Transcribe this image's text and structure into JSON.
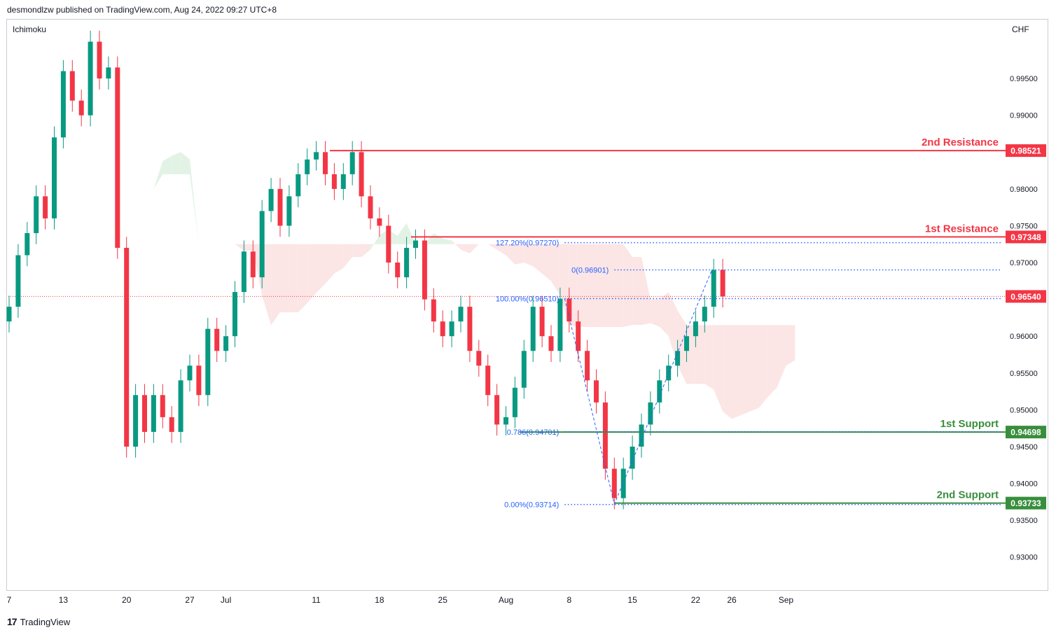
{
  "header": {
    "published_text": "desmondlzw published on TradingView.com, Aug 24, 2022 09:27 UTC+8"
  },
  "indicator": {
    "name": "Ichimoku"
  },
  "currency": "CHF",
  "footer": {
    "brand": "TradingView",
    "icon": "tradingview-logo-icon"
  },
  "chart_data": {
    "type": "candlestick",
    "symbol_quote_currency": "CHF",
    "y_range": [
      0.9255,
      1.003
    ],
    "y_ticks": [
      {
        "value": 0.995,
        "label": "0.99500"
      },
      {
        "value": 0.99,
        "label": "0.99000"
      },
      {
        "value": 0.98,
        "label": "0.98000"
      },
      {
        "value": 0.975,
        "label": "0.97500"
      },
      {
        "value": 0.97,
        "label": "0.97000"
      },
      {
        "value": 0.96,
        "label": "0.96000"
      },
      {
        "value": 0.955,
        "label": "0.95500"
      },
      {
        "value": 0.95,
        "label": "0.95000"
      },
      {
        "value": 0.945,
        "label": "0.94500"
      },
      {
        "value": 0.94,
        "label": "0.94000"
      },
      {
        "value": 0.935,
        "label": "0.93500"
      },
      {
        "value": 0.93,
        "label": "0.93000"
      }
    ],
    "x_range": [
      0,
      137
    ],
    "x_ticks": [
      {
        "day": 0,
        "label": "7"
      },
      {
        "day": 6,
        "label": "13"
      },
      {
        "day": 13,
        "label": "20"
      },
      {
        "day": 20,
        "label": "27"
      },
      {
        "day": 24,
        "label": "Jul"
      },
      {
        "day": 34,
        "label": "11"
      },
      {
        "day": 41,
        "label": "18"
      },
      {
        "day": 48,
        "label": "25"
      },
      {
        "day": 55,
        "label": "Aug"
      },
      {
        "day": 62,
        "label": "8"
      },
      {
        "day": 69,
        "label": "15"
      },
      {
        "day": 76,
        "label": "22"
      },
      {
        "day": 80,
        "label": "26"
      },
      {
        "day": 86,
        "label": "Sep"
      }
    ],
    "current_price": {
      "value": 0.9654,
      "label": "0.96540"
    },
    "levels": [
      {
        "name": "2nd Resistance",
        "value": 0.98521,
        "label": "0.98521",
        "kind": "resistance",
        "x_start": 35.5,
        "color": "#f23645"
      },
      {
        "name": "1st Resistance",
        "value": 0.97348,
        "label": "0.97348",
        "kind": "resistance",
        "x_start": 44.5,
        "color": "#f23645"
      },
      {
        "name": "1st Support",
        "value": 0.94698,
        "label": "0.94698",
        "kind": "support",
        "x_start": 56.5,
        "color": "#388e3c"
      },
      {
        "name": "2nd Support",
        "value": 0.93733,
        "label": "0.93733",
        "kind": "support",
        "x_start": 67,
        "color": "#388e3c"
      }
    ],
    "fib_levels": [
      {
        "label": "127.20%(0.97270)",
        "value": 0.9727,
        "x_start": 61.5
      },
      {
        "label": "0(0.96901)",
        "value": 0.96901,
        "x_start": 67
      },
      {
        "label": "100.00%(0.96510)",
        "value": 0.9651,
        "x_start": 61.5
      },
      {
        "label": "0.786(0.94701)",
        "value": 0.94701,
        "x_start": 61.5
      },
      {
        "label": "0.00%(0.93714)",
        "value": 0.93714,
        "x_start": 61.5
      }
    ],
    "zigzag": [
      [
        61.5,
        0.9651
      ],
      [
        67,
        0.9372
      ],
      [
        77.8,
        0.969
      ]
    ],
    "colors": {
      "up": "#089981",
      "down": "#f23645",
      "cloud_bull": "#d8efdc",
      "cloud_bear": "#fbdcdc",
      "fib": "#2962ff"
    },
    "closes": [
      0.964,
      0.971,
      0.974,
      0.979,
      0.976,
      0.987,
      0.996,
      0.992,
      0.99,
      1.0,
      0.995,
      0.9965,
      0.972,
      0.945,
      0.952,
      0.947,
      0.952,
      0.949,
      0.947,
      0.954,
      0.956,
      0.952,
      0.961,
      0.958,
      0.96,
      0.966,
      0.9715,
      0.968,
      0.977,
      0.98,
      0.975,
      0.979,
      0.982,
      0.984,
      0.985,
      0.982,
      0.98,
      0.982,
      0.985,
      0.979,
      0.976,
      0.975,
      0.97,
      0.968,
      0.972,
      0.973,
      0.965,
      0.962,
      0.96,
      0.962,
      0.964,
      0.958,
      0.956,
      0.952,
      0.948,
      0.949,
      0.953,
      0.958,
      0.964,
      0.96,
      0.958,
      0.9651,
      0.962,
      0.958,
      0.954,
      0.951,
      0.942,
      0.938,
      0.942,
      0.945,
      0.948,
      0.951,
      0.954,
      0.956,
      0.958,
      0.96,
      0.962,
      0.964,
      0.969,
      0.9654
    ]
  }
}
